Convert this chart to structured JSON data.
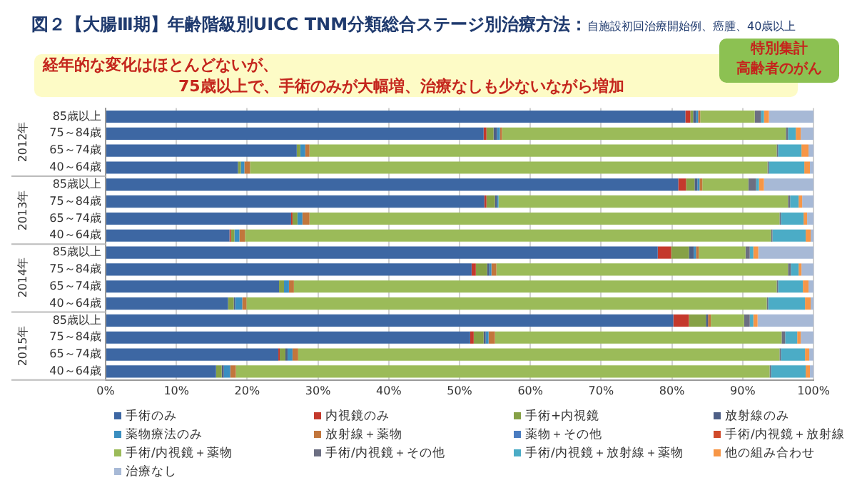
{
  "chart_data": {
    "type": "bar",
    "orientation": "horizontal",
    "stacked": true,
    "title": "図２【大腸Ⅲ期】年齢階級別UICC TNM分類総合ステージ別治療方法：",
    "subtitle": "自施設初回治療開始例、癌腫、40歳以上",
    "annotations": [
      "経年的な変化はほとんどないが、",
      "75歳以上で、手術のみが大幅増、治療なしも少ないながら増加",
      "特別集計",
      "高齢者のがん",
      "2012年",
      "2013年",
      "2014年",
      "2015年"
    ],
    "categories": [
      "85歳以上",
      "75～84歳",
      "65～74歳",
      "40～64歳",
      "85歳以上",
      "75～84歳",
      "65～74歳",
      "40～64歳",
      "85歳以上",
      "75～84歳",
      "65～74歳",
      "40～64歳",
      "85歳以上",
      "75～84歳",
      "65～74歳",
      "40～64歳"
    ],
    "xlim": [
      0,
      100
    ],
    "xticks": [
      {
        "value": 0,
        "label": "0%"
      },
      {
        "value": 10,
        "label": "10%"
      },
      {
        "value": 20,
        "label": "20%"
      },
      {
        "value": 30,
        "label": "30%"
      },
      {
        "value": 40,
        "label": "40%"
      },
      {
        "value": 50,
        "label": "50%"
      },
      {
        "value": 60,
        "label": "60%"
      },
      {
        "value": 70,
        "label": "70%"
      },
      {
        "value": 80,
        "label": "80%"
      },
      {
        "value": 90,
        "label": "90%"
      },
      {
        "value": 100,
        "label": "100%"
      }
    ],
    "grid": "x",
    "legend": "bottom",
    "series": [
      {
        "name": "手術のみ",
        "color": "#3d67a3",
        "values": [
          81.9,
          53.4,
          27.0,
          18.7,
          80.9,
          53.5,
          26.2,
          17.5,
          78.0,
          51.7,
          24.5,
          17.3,
          80.2,
          51.5,
          24.4,
          15.6
        ]
      },
      {
        "name": "内視鏡のみ",
        "color": "#c4392c",
        "values": [
          0.7,
          0.4,
          0,
          0,
          1.1,
          0.3,
          0.2,
          0.2,
          1.9,
          0.6,
          0,
          0,
          2.2,
          0.5,
          0.2,
          0
        ]
      },
      {
        "name": "手術+内視鏡",
        "color": "#86a146",
        "values": [
          0.4,
          1.0,
          0.5,
          0.4,
          1.2,
          1.2,
          0.7,
          0.5,
          2.5,
          1.6,
          0.7,
          0.8,
          2.4,
          1.4,
          0.8,
          0.8
        ]
      },
      {
        "name": "放射線のみ",
        "color": "#4e5f86",
        "values": [
          0.4,
          0.5,
          0,
          0,
          0.4,
          0.3,
          0,
          0,
          0.7,
          0.3,
          0,
          0.2,
          0.3,
          0.3,
          0.3,
          0.3
        ]
      },
      {
        "name": "薬物療法のみ",
        "color": "#3a8ec0",
        "values": [
          0.3,
          0.4,
          0.7,
          0.5,
          0.3,
          0.2,
          0.7,
          0.7,
          0.3,
          0.3,
          0.7,
          1.0,
          0,
          0.4,
          0.7,
          0.9
        ]
      },
      {
        "name": "放射線＋薬物",
        "color": "#c2763c",
        "values": [
          0.3,
          0.3,
          0.6,
          0.8,
          0.4,
          0,
          1.0,
          0.8,
          0.4,
          0.7,
          0.7,
          0.6,
          0.4,
          0.9,
          0.8,
          0.8
        ]
      },
      {
        "name": "薬物＋その他",
        "color": "#4a7cc0",
        "values": [
          0,
          0,
          0,
          0,
          0,
          0,
          0,
          0,
          0,
          0,
          0,
          0,
          0,
          0,
          0,
          0
        ]
      },
      {
        "name": "手術/内視鏡＋放射線",
        "color": "#d04a2a",
        "values": [
          0,
          0,
          0,
          0,
          0,
          0,
          0,
          0,
          0,
          0,
          0,
          0,
          0,
          0,
          0,
          0
        ]
      },
      {
        "name": "手術/内視鏡＋薬物",
        "color": "#9bbb59",
        "values": [
          7.7,
          40.1,
          66.0,
          73.1,
          6.5,
          40.9,
          66.4,
          74.3,
          6.6,
          41.2,
          68.2,
          73.5,
          4.7,
          40.5,
          68.0,
          75.4
        ]
      },
      {
        "name": "手術/内視鏡＋その他",
        "color": "#6c6f82",
        "values": [
          0.9,
          0.3,
          0.2,
          0.2,
          1.1,
          0.3,
          0.2,
          0.2,
          0.6,
          0.4,
          0.2,
          0.2,
          0.8,
          0.5,
          0.2,
          0.2
        ]
      },
      {
        "name": "手術/内視鏡＋放射線＋薬物",
        "color": "#4bacc6",
        "values": [
          0.4,
          1.1,
          3.3,
          5.0,
          0.4,
          1.2,
          3.2,
          4.7,
          0.5,
          1.1,
          3.5,
          5.2,
          0.5,
          1.7,
          3.4,
          4.9
        ]
      },
      {
        "name": "他の組み合わせ",
        "color": "#f79646",
        "values": [
          0.7,
          0.7,
          1.0,
          0.8,
          0.7,
          0.5,
          0.5,
          0.7,
          0.7,
          0.4,
          0.8,
          0.8,
          0.6,
          0.5,
          0.6,
          0.6
        ]
      },
      {
        "name": "治療なし",
        "color": "#a7b9d6",
        "values": [
          6.3,
          1.8,
          0.7,
          0.5,
          7.0,
          1.6,
          0.9,
          0.4,
          7.8,
          1.7,
          0.7,
          0.4,
          7.9,
          1.8,
          0.6,
          0.5
        ]
      }
    ]
  }
}
